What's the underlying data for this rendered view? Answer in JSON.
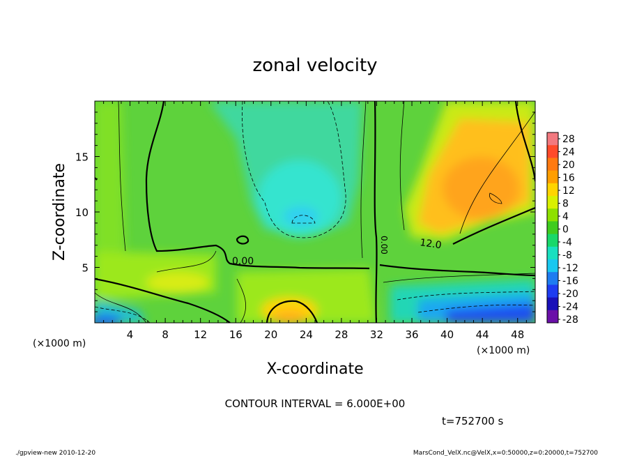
{
  "chart_data": {
    "type": "heatmap",
    "title": "zonal velocity",
    "xlabel": "X-coordinate",
    "ylabel": "Z-coordinate",
    "x_unit": "(×1000 m)",
    "y_unit": "(×1000 m)",
    "xlim": [
      0,
      50
    ],
    "ylim": [
      0,
      20
    ],
    "x_ticks": [
      4,
      8,
      12,
      16,
      20,
      24,
      28,
      32,
      36,
      40,
      44,
      48
    ],
    "y_ticks": [
      5,
      10,
      15
    ],
    "colorbar": {
      "labels": [
        28,
        24,
        20,
        16,
        12,
        8,
        4,
        0,
        -4,
        -8,
        -12,
        -16,
        -20,
        -24,
        -28
      ],
      "colors": [
        "#f2797f",
        "#ff4a2a",
        "#ff7a10",
        "#ff9e00",
        "#ffd400",
        "#d9f000",
        "#8ee000",
        "#3fcc1e",
        "#19d86a",
        "#19e0c0",
        "#19c8f0",
        "#1e7cf0",
        "#1e3cf0",
        "#1a10b8",
        "#6a10a8"
      ]
    },
    "contour_labels": [
      "0.00",
      "12.0",
      "0.00"
    ],
    "contour_interval": "CONTOUR INTERVAL = 6.000E+00",
    "time": "t=752700 s",
    "footer_left": "./gpview-new   2010-12-20",
    "footer_right": "MarsCond_VelX.nc@VelX,x=0:50000,z=0:20000,t=752700"
  }
}
